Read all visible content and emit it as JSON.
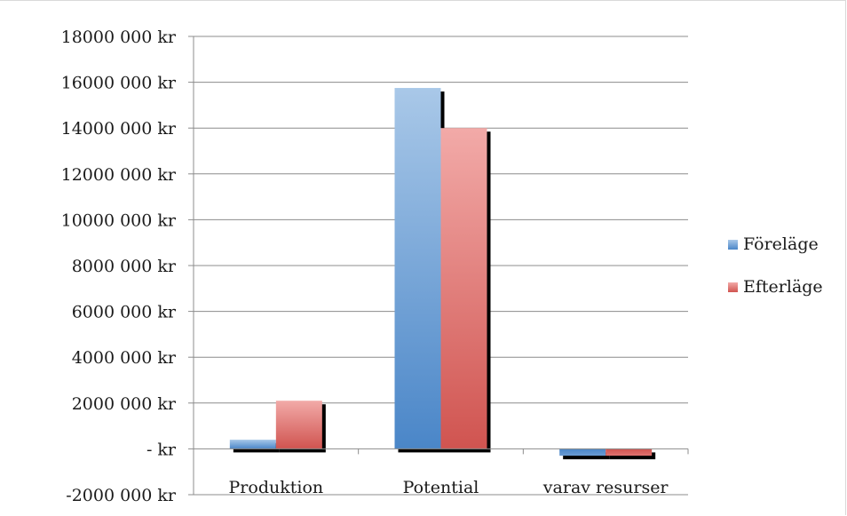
{
  "chart_data": {
    "type": "bar",
    "categories": [
      "Produktion",
      "Potential",
      "varav resurser"
    ],
    "series": [
      {
        "name": "Föreläge",
        "values": [
          400000,
          15750000,
          -300000
        ],
        "color": "#4a86c8"
      },
      {
        "name": "Efterläge",
        "values": [
          2100000,
          14000000,
          -300000
        ],
        "color": "#d9534f"
      }
    ],
    "ylim": [
      -2000000,
      18000000
    ],
    "yticks": [
      18000000,
      16000000,
      14000000,
      12000000,
      10000000,
      8000000,
      6000000,
      4000000,
      2000000,
      0,
      -2000000
    ],
    "ytick_labels": [
      "18000 000 kr",
      "16000 000 kr",
      "14000 000 kr",
      "12000 000 kr",
      "10000 000 kr",
      "8000 000 kr",
      "6000 000 kr",
      "4000 000 kr",
      "2000 000 kr",
      "-  kr",
      "-2000 000 kr"
    ],
    "grid": true,
    "legend_position": "right"
  }
}
